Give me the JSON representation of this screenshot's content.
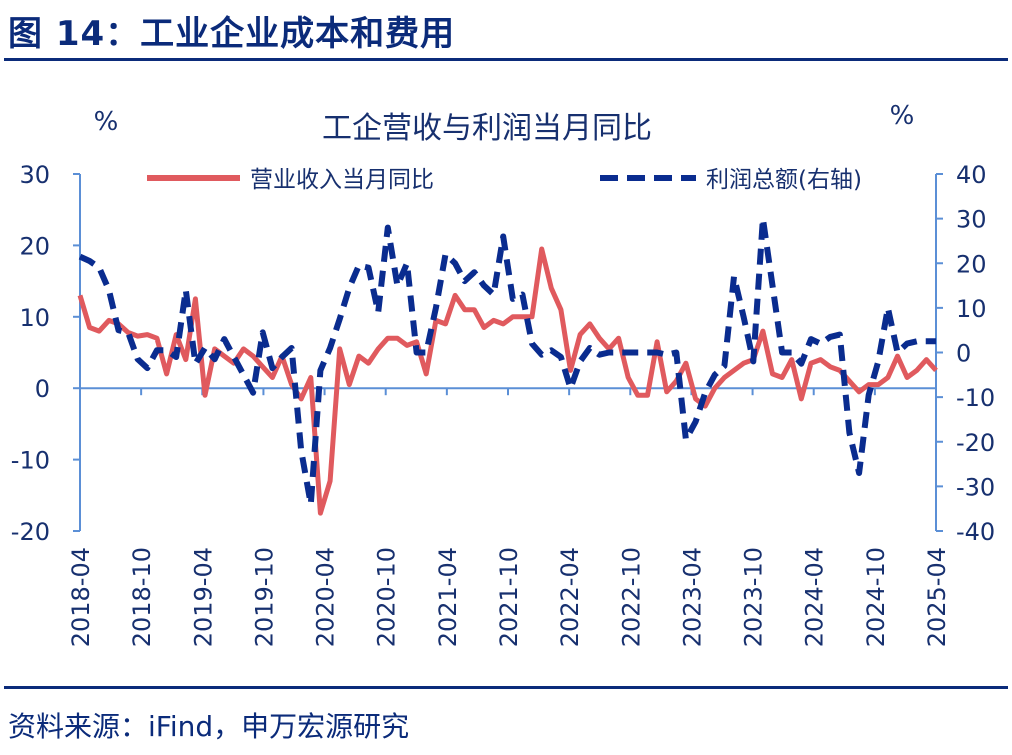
{
  "figure_title": "图 14：工业企业成本和费用",
  "source": "资料来源：iFind，申万宏源研究",
  "colors": {
    "heading": "#0b2b7a",
    "revenue": "#e05a5e",
    "profit": "#0a2c8f",
    "axis": "#5b8fd6"
  },
  "chart_data": {
    "type": "line",
    "title": "工企营收与利润当月同比",
    "left_unit": "%",
    "right_unit": "%",
    "x_labels": [
      "2018-04",
      "2018-10",
      "2019-04",
      "2019-10",
      "2020-04",
      "2020-10",
      "2021-04",
      "2021-10",
      "2022-04",
      "2022-10",
      "2023-04",
      "2023-10",
      "2024-04",
      "2024-10",
      "2025-04"
    ],
    "y_left": {
      "ticks": [
        30,
        20,
        10,
        0,
        -10,
        -20
      ],
      "tick_labels": [
        "30",
        "20",
        "10",
        "0",
        "-10",
        "-20"
      ],
      "lim": [
        -20,
        30
      ]
    },
    "y_right": {
      "ticks": [
        40,
        30,
        20,
        10,
        0,
        -10,
        -20,
        -30,
        -40
      ],
      "tick_labels": [
        "40",
        "30",
        "20",
        "10",
        "0",
        "-10",
        "-20",
        "-30",
        "-40"
      ],
      "lim": [
        -40,
        40
      ]
    },
    "legend": [
      "营业收入当月同比",
      "利润总额(右轴)"
    ],
    "series": [
      {
        "name": "营业收入当月同比",
        "axis": "left",
        "style": "solid",
        "values": [
          13.0,
          8.5,
          8.0,
          9.5,
          9.0,
          7.8,
          7.3,
          7.5,
          7.0,
          2.0,
          7.5,
          4.0,
          12.5,
          -1.0,
          5.5,
          4.5,
          3.5,
          5.5,
          4.5,
          3.0,
          1.5,
          4.5,
          0.5,
          -1.5,
          1.5,
          -17.5,
          -13.0,
          5.5,
          0.5,
          4.5,
          3.5,
          5.5,
          7.0,
          7.0,
          6.0,
          6.5,
          2.0,
          9.5,
          9.0,
          13.0,
          11.0,
          11.0,
          8.5,
          9.5,
          9.0,
          10.0,
          10.0,
          10.0,
          19.5,
          14.0,
          11.0,
          2.5,
          7.5,
          9.0,
          7.0,
          5.5,
          7.0,
          1.5,
          -1.0,
          -1.0,
          6.5,
          -0.5,
          1.0,
          3.5,
          -1.5,
          -2.5,
          0.0,
          1.5,
          2.5,
          3.5,
          4.0,
          8.0,
          2.0,
          1.5,
          4.0,
          -1.5,
          3.5,
          4.0,
          3.0,
          2.5,
          1.0,
          -0.5,
          0.5,
          0.5,
          1.5,
          4.5,
          1.5,
          2.5,
          4.0,
          2.5
        ]
      },
      {
        "name": "利润总额(右轴)",
        "axis": "right",
        "style": "dashed",
        "values": [
          21.5,
          20.5,
          19.0,
          14.0,
          5.0,
          4.5,
          -1.5,
          -3.5,
          0.5,
          0.5,
          -1.0,
          14.0,
          -2.5,
          1.0,
          -1.5,
          3.0,
          -1.0,
          -5.0,
          -9.0,
          4.5,
          -3.5,
          -1.0,
          1.0,
          -22.0,
          -34.0,
          -4.0,
          1.0,
          7.5,
          14.5,
          19.5,
          19.0,
          9.0,
          28.0,
          15.0,
          20.0,
          0.0,
          0.0,
          10.0,
          22.0,
          20.0,
          16.0,
          18.0,
          15.0,
          13.0,
          26.0,
          12.0,
          13.0,
          2.0,
          -0.5,
          0.5,
          -1.0,
          -8.0,
          -2.0,
          1.0,
          -0.5,
          0.0,
          0.0,
          0.0,
          0.0,
          0.0,
          0.0,
          -0.5,
          0.0,
          -19.5,
          -15.5,
          -9.0,
          -5.0,
          -3.0,
          17.0,
          8.0,
          -2.0,
          30.0,
          15.0,
          0.0,
          0.0,
          -2.5,
          3.0,
          2.0,
          3.5,
          4.0,
          -18.0,
          -27.0,
          -9.5,
          -2.0,
          10.0,
          0.0,
          2.0,
          2.5,
          2.5,
          2.5
        ]
      }
    ]
  }
}
